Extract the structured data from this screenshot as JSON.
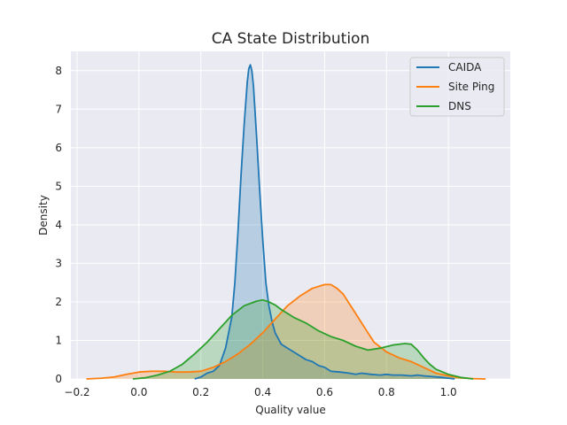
{
  "chart_data": {
    "type": "area",
    "title": "CA State Distribution",
    "xlabel": "Quality value",
    "ylabel": "Density",
    "xlim": [
      -0.22,
      1.2
    ],
    "ylim": [
      0,
      8.5
    ],
    "xticks": [
      -0.2,
      0.0,
      0.2,
      0.4,
      0.6,
      0.8,
      1.0
    ],
    "xtick_labels": [
      "−0.2",
      "0.0",
      "0.2",
      "0.4",
      "0.6",
      "0.8",
      "1.0"
    ],
    "yticks": [
      0,
      1,
      2,
      3,
      4,
      5,
      6,
      7,
      8
    ],
    "ytick_labels": [
      "0",
      "1",
      "2",
      "3",
      "4",
      "5",
      "6",
      "7",
      "8"
    ],
    "grid": true,
    "legend_position": "top-right",
    "series": [
      {
        "name": "CAIDA",
        "color": "#1f77b4",
        "x": [
          0.18,
          0.2,
          0.22,
          0.24,
          0.26,
          0.28,
          0.3,
          0.31,
          0.32,
          0.33,
          0.34,
          0.35,
          0.355,
          0.36,
          0.365,
          0.37,
          0.38,
          0.39,
          0.4,
          0.41,
          0.42,
          0.43,
          0.44,
          0.46,
          0.48,
          0.5,
          0.52,
          0.54,
          0.56,
          0.58,
          0.6,
          0.62,
          0.65,
          0.68,
          0.7,
          0.72,
          0.75,
          0.78,
          0.8,
          0.82,
          0.85,
          0.88,
          0.9,
          0.92,
          0.95,
          0.98,
          1.0,
          1.02
        ],
        "y": [
          0.0,
          0.05,
          0.15,
          0.2,
          0.35,
          0.8,
          1.6,
          2.5,
          3.8,
          5.3,
          6.6,
          7.7,
          8.05,
          8.15,
          8.0,
          7.6,
          6.3,
          4.9,
          3.6,
          2.5,
          1.9,
          1.5,
          1.2,
          0.9,
          0.8,
          0.7,
          0.6,
          0.5,
          0.45,
          0.35,
          0.3,
          0.2,
          0.18,
          0.15,
          0.12,
          0.15,
          0.12,
          0.1,
          0.12,
          0.1,
          0.1,
          0.08,
          0.1,
          0.08,
          0.06,
          0.04,
          0.02,
          0.0
        ]
      },
      {
        "name": "Site Ping",
        "color": "#ff7f0e",
        "x": [
          -0.17,
          -0.12,
          -0.08,
          -0.04,
          0.0,
          0.04,
          0.08,
          0.12,
          0.16,
          0.2,
          0.24,
          0.28,
          0.32,
          0.36,
          0.4,
          0.44,
          0.48,
          0.52,
          0.56,
          0.6,
          0.62,
          0.64,
          0.66,
          0.68,
          0.7,
          0.72,
          0.74,
          0.76,
          0.8,
          0.84,
          0.88,
          0.92,
          0.96,
          1.0,
          1.04,
          1.08,
          1.12
        ],
        "y": [
          0.0,
          0.02,
          0.05,
          0.12,
          0.18,
          0.2,
          0.2,
          0.18,
          0.18,
          0.2,
          0.3,
          0.45,
          0.65,
          0.9,
          1.2,
          1.55,
          1.9,
          2.15,
          2.35,
          2.45,
          2.45,
          2.35,
          2.2,
          1.95,
          1.7,
          1.45,
          1.2,
          0.95,
          0.7,
          0.55,
          0.45,
          0.3,
          0.15,
          0.08,
          0.03,
          0.01,
          0.0
        ]
      },
      {
        "name": "DNS",
        "color": "#2ca02c",
        "x": [
          -0.02,
          0.02,
          0.06,
          0.1,
          0.14,
          0.18,
          0.22,
          0.26,
          0.3,
          0.34,
          0.38,
          0.4,
          0.42,
          0.44,
          0.46,
          0.5,
          0.54,
          0.58,
          0.62,
          0.66,
          0.7,
          0.74,
          0.78,
          0.82,
          0.86,
          0.88,
          0.9,
          0.92,
          0.94,
          0.96,
          1.0,
          1.04,
          1.08
        ],
        "y": [
          0.0,
          0.03,
          0.1,
          0.2,
          0.38,
          0.65,
          0.95,
          1.3,
          1.65,
          1.9,
          2.02,
          2.05,
          2.0,
          1.92,
          1.8,
          1.6,
          1.45,
          1.25,
          1.1,
          1.0,
          0.85,
          0.75,
          0.8,
          0.88,
          0.92,
          0.9,
          0.75,
          0.55,
          0.38,
          0.25,
          0.12,
          0.04,
          0.0
        ]
      }
    ]
  }
}
